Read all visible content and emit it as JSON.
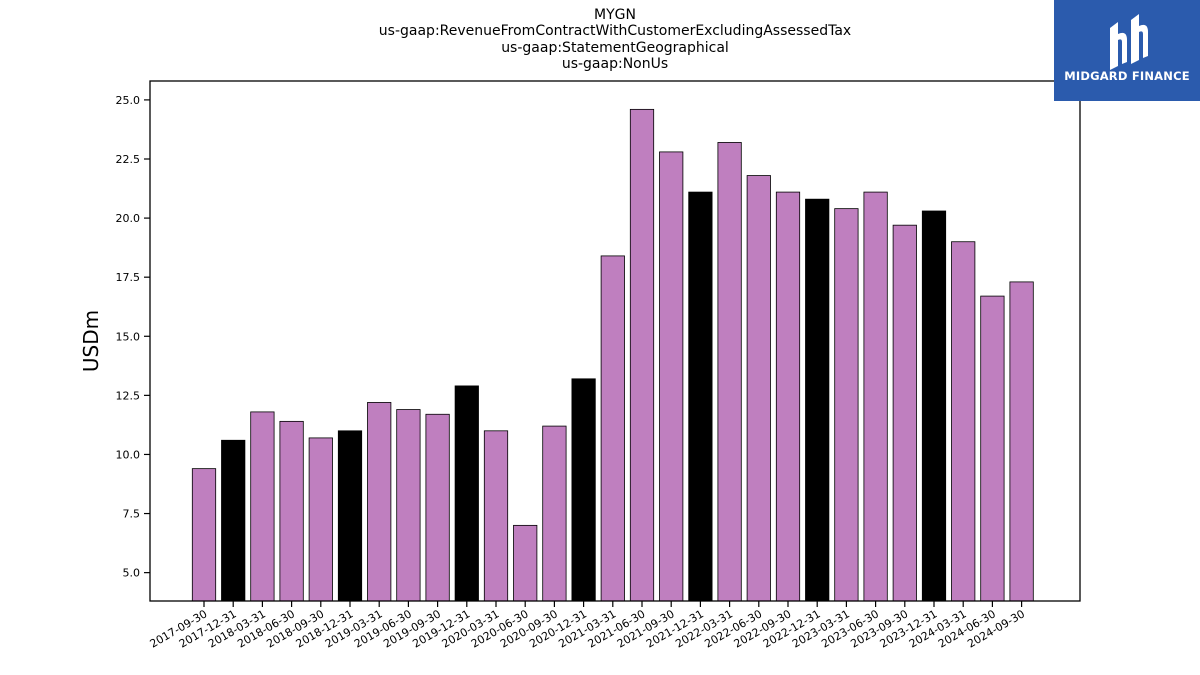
{
  "title_lines": [
    "MYGN",
    "us-gaap:RevenueFromContractWithCustomerExcludingAssessedTax",
    "us-gaap:StatementGeographical",
    "us-gaap:NonUs"
  ],
  "logo": {
    "text": "MIDGARD FINANCE",
    "background_color": "#2b5bad",
    "icon": "midgard-logo-icon"
  },
  "colors": {
    "quarter_bar": "#bf7fbf",
    "year_end_bar": "#000000",
    "bar_edge": "#000000"
  },
  "chart_data": {
    "type": "bar",
    "title": "MYGN\nus-gaap:RevenueFromContractWithCustomerExcludingAssessedTax\nus-gaap:StatementGeographical\nus-gaap:NonUs",
    "xlabel": "",
    "ylabel": "USDm",
    "ylim": [
      3.8,
      25.8
    ],
    "yticks": [
      "5.0",
      "7.5",
      "10.0",
      "12.5",
      "15.0",
      "17.5",
      "20.0",
      "22.5",
      "25.0"
    ],
    "grid": false,
    "categories": [
      "2017-09-30",
      "2017-12-31",
      "2018-03-31",
      "2018-06-30",
      "2018-09-30",
      "2018-12-31",
      "2019-03-31",
      "2019-06-30",
      "2019-09-30",
      "2019-12-31",
      "2020-03-31",
      "2020-06-30",
      "2020-09-30",
      "2020-12-31",
      "2021-03-31",
      "2021-06-30",
      "2021-09-30",
      "2021-12-31",
      "2022-03-31",
      "2022-06-30",
      "2022-09-30",
      "2022-12-31",
      "2023-03-31",
      "2023-06-30",
      "2023-09-30",
      "2023-12-31",
      "2024-03-31",
      "2024-06-30",
      "2024-09-30"
    ],
    "values": [
      9.4,
      10.6,
      11.8,
      11.4,
      10.7,
      11.0,
      12.2,
      11.9,
      11.7,
      12.9,
      11.0,
      7.0,
      11.2,
      13.2,
      18.4,
      24.6,
      22.8,
      21.1,
      23.2,
      21.8,
      21.1,
      20.8,
      20.4,
      21.1,
      19.7,
      20.3,
      19.0,
      16.7,
      17.3
    ]
  }
}
